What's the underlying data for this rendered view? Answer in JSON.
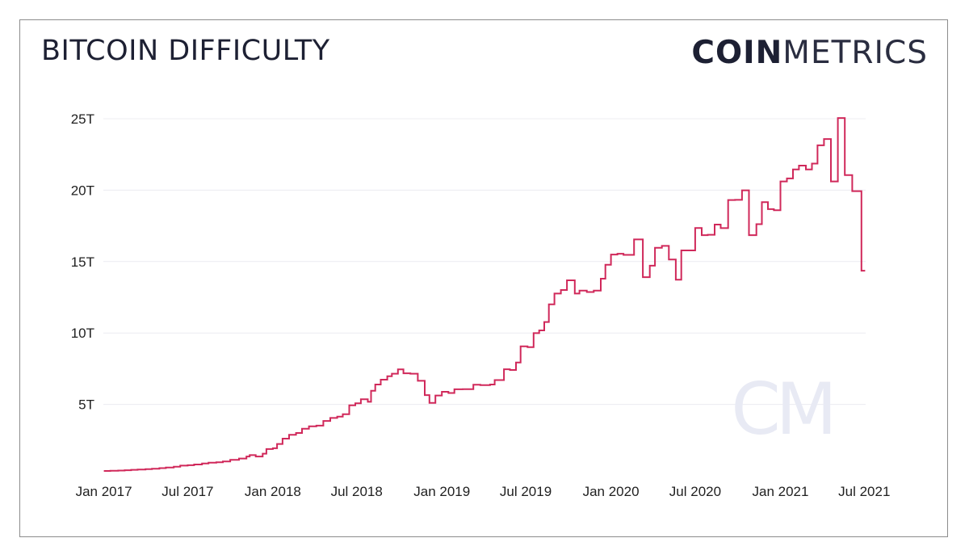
{
  "header": {
    "title": "BITCOIN DIFFICULTY",
    "logo_bold": "COIN",
    "logo_light": "METRICS",
    "watermark": "CM"
  },
  "chart_data": {
    "type": "line",
    "title": "BITCOIN DIFFICULTY",
    "xlabel": "",
    "ylabel": "",
    "x_ticks": [
      "Jan 2017",
      "Jul 2017",
      "Jan 2018",
      "Jul 2018",
      "Jan 2019",
      "Jul 2019",
      "Jan 2020",
      "Jul 2020",
      "Jan 2021",
      "Jul 2021"
    ],
    "y_ticks": [
      {
        "value": 5,
        "label": "5T"
      },
      {
        "value": 10,
        "label": "10T"
      },
      {
        "value": 15,
        "label": "15T"
      },
      {
        "value": 20,
        "label": "20T"
      },
      {
        "value": 25,
        "label": "25T"
      }
    ],
    "ylim": [
      0,
      25
    ],
    "xlim": [
      "2016-12-31",
      "2021-07-04"
    ],
    "grid": "horizontal",
    "line_color": "#d0285a",
    "units": "T",
    "series": [
      {
        "step": "after",
        "points": [
          [
            "2017-01-01",
            0.34
          ],
          [
            "2017-01-15",
            0.35
          ],
          [
            "2017-02-01",
            0.37
          ],
          [
            "2017-02-15",
            0.39
          ],
          [
            "2017-03-01",
            0.42
          ],
          [
            "2017-03-15",
            0.44
          ],
          [
            "2017-04-01",
            0.47
          ],
          [
            "2017-04-15",
            0.5
          ],
          [
            "2017-05-01",
            0.54
          ],
          [
            "2017-05-15",
            0.58
          ],
          [
            "2017-06-01",
            0.64
          ],
          [
            "2017-06-15",
            0.71
          ],
          [
            "2017-07-01",
            0.74
          ],
          [
            "2017-07-15",
            0.79
          ],
          [
            "2017-08-01",
            0.86
          ],
          [
            "2017-08-15",
            0.92
          ],
          [
            "2017-09-01",
            0.95
          ],
          [
            "2017-09-15",
            1.0
          ],
          [
            "2017-10-01",
            1.12
          ],
          [
            "2017-10-20",
            1.21
          ],
          [
            "2017-11-05",
            1.35
          ],
          [
            "2017-11-12",
            1.45
          ],
          [
            "2017-11-25",
            1.35
          ],
          [
            "2017-12-10",
            1.55
          ],
          [
            "2017-12-18",
            1.87
          ],
          [
            "2018-01-01",
            1.93
          ],
          [
            "2018-01-10",
            2.23
          ],
          [
            "2018-01-22",
            2.6
          ],
          [
            "2018-02-05",
            2.87
          ],
          [
            "2018-02-20",
            3.0
          ],
          [
            "2018-03-05",
            3.29
          ],
          [
            "2018-03-20",
            3.46
          ],
          [
            "2018-04-05",
            3.51
          ],
          [
            "2018-04-20",
            3.84
          ],
          [
            "2018-05-05",
            4.05
          ],
          [
            "2018-05-20",
            4.14
          ],
          [
            "2018-06-01",
            4.31
          ],
          [
            "2018-06-15",
            4.94
          ],
          [
            "2018-06-28",
            5.08
          ],
          [
            "2018-07-10",
            5.36
          ],
          [
            "2018-07-25",
            5.18
          ],
          [
            "2018-08-01",
            5.95
          ],
          [
            "2018-08-10",
            6.39
          ],
          [
            "2018-08-22",
            6.73
          ],
          [
            "2018-09-05",
            6.97
          ],
          [
            "2018-09-15",
            7.15
          ],
          [
            "2018-09-28",
            7.45
          ],
          [
            "2018-10-10",
            7.18
          ],
          [
            "2018-10-25",
            7.15
          ],
          [
            "2018-11-10",
            6.65
          ],
          [
            "2018-11-25",
            5.65
          ],
          [
            "2018-12-05",
            5.11
          ],
          [
            "2018-12-18",
            5.62
          ],
          [
            "2019-01-01",
            5.88
          ],
          [
            "2019-01-15",
            5.8
          ],
          [
            "2019-01-28",
            6.06
          ],
          [
            "2019-02-15",
            6.07
          ],
          [
            "2019-03-10",
            6.38
          ],
          [
            "2019-03-25",
            6.35
          ],
          [
            "2019-04-15",
            6.39
          ],
          [
            "2019-04-25",
            6.7
          ],
          [
            "2019-05-15",
            7.46
          ],
          [
            "2019-05-28",
            7.41
          ],
          [
            "2019-06-10",
            7.93
          ],
          [
            "2019-06-20",
            9.06
          ],
          [
            "2019-07-05",
            9.01
          ],
          [
            "2019-07-18",
            9.99
          ],
          [
            "2019-07-30",
            10.18
          ],
          [
            "2019-08-10",
            10.77
          ],
          [
            "2019-08-20",
            12.01
          ],
          [
            "2019-09-01",
            12.76
          ],
          [
            "2019-09-15",
            13.01
          ],
          [
            "2019-09-28",
            13.69
          ],
          [
            "2019-10-15",
            12.76
          ],
          [
            "2019-10-25",
            12.97
          ],
          [
            "2019-11-10",
            12.87
          ],
          [
            "2019-11-25",
            12.97
          ],
          [
            "2019-12-10",
            13.8
          ],
          [
            "2019-12-20",
            14.78
          ],
          [
            "2020-01-01",
            15.49
          ],
          [
            "2020-01-15",
            15.55
          ],
          [
            "2020-01-28",
            15.47
          ],
          [
            "2020-02-20",
            16.55
          ],
          [
            "2020-03-10",
            13.91
          ],
          [
            "2020-03-25",
            14.71
          ],
          [
            "2020-04-05",
            15.96
          ],
          [
            "2020-04-20",
            16.1
          ],
          [
            "2020-05-05",
            15.14
          ],
          [
            "2020-05-20",
            13.73
          ],
          [
            "2020-06-01",
            15.78
          ],
          [
            "2020-06-15",
            15.78
          ],
          [
            "2020-07-01",
            17.35
          ],
          [
            "2020-07-15",
            16.85
          ],
          [
            "2020-07-28",
            16.88
          ],
          [
            "2020-08-12",
            17.59
          ],
          [
            "2020-08-25",
            17.34
          ],
          [
            "2020-09-10",
            19.31
          ],
          [
            "2020-09-25",
            19.32
          ],
          [
            "2020-10-10",
            19.99
          ],
          [
            "2020-10-25",
            16.85
          ],
          [
            "2020-11-10",
            17.62
          ],
          [
            "2020-11-22",
            19.16
          ],
          [
            "2020-12-05",
            18.67
          ],
          [
            "2020-12-18",
            18.6
          ],
          [
            "2021-01-01",
            20.61
          ],
          [
            "2021-01-15",
            20.82
          ],
          [
            "2021-01-28",
            21.45
          ],
          [
            "2021-02-10",
            21.72
          ],
          [
            "2021-02-25",
            21.45
          ],
          [
            "2021-03-10",
            21.86
          ],
          [
            "2021-03-22",
            23.14
          ],
          [
            "2021-04-05",
            23.58
          ],
          [
            "2021-04-20",
            20.61
          ],
          [
            "2021-05-05",
            25.05
          ],
          [
            "2021-05-20",
            21.05
          ],
          [
            "2021-06-05",
            19.93
          ],
          [
            "2021-06-25",
            14.36
          ],
          [
            "2021-07-03",
            14.36
          ]
        ]
      }
    ]
  }
}
